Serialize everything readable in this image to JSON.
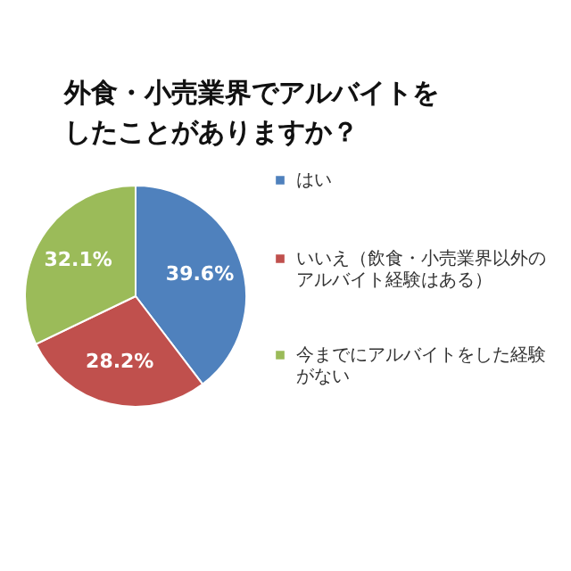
{
  "chart_data": {
    "type": "pie",
    "title": "外食・小売業界でアルバイトをしたことがありますか？",
    "categories": [
      "はい",
      "いいえ（飲食・小売業界以外のアルバイト経験はある）",
      "今までにアルバイトをした経験がない"
    ],
    "values": [
      39.6,
      28.2,
      32.1
    ],
    "colors": [
      "#4f81bd",
      "#c0504d",
      "#9bbb59"
    ],
    "value_labels": [
      "39.6%",
      "28.2%",
      "32.1%"
    ],
    "legend": "right"
  }
}
